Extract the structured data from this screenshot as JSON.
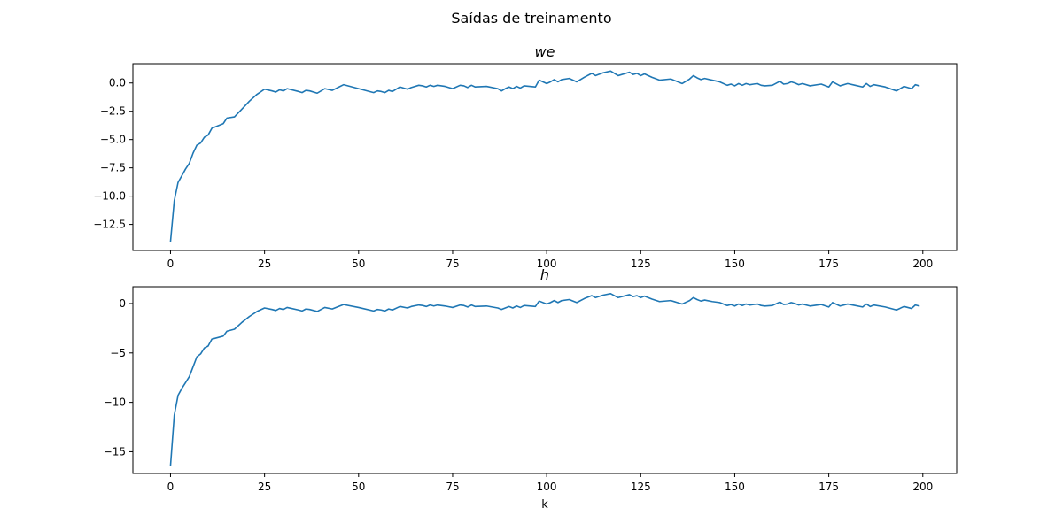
{
  "figure": {
    "suptitle": "Saídas de treinamento"
  },
  "chart_data": [
    {
      "type": "line",
      "title": "we",
      "xlabel": "",
      "ylabel": "",
      "xlim": [
        -10,
        209
      ],
      "ylim": [
        -14.8,
        1.7
      ],
      "xticks": [
        0,
        25,
        50,
        75,
        100,
        125,
        150,
        175,
        200
      ],
      "xtick_labels": [
        "0",
        "25",
        "50",
        "75",
        "100",
        "125",
        "150",
        "175",
        "200"
      ],
      "yticks": [
        0,
        -2.5,
        -5,
        -7.5,
        -10,
        -12.5
      ],
      "ytick_labels": [
        "0.0",
        "−2.5",
        "−5.0",
        "−7.5",
        "−10.0",
        "−12.5"
      ],
      "grid": false,
      "series": [
        {
          "color": "#1f77b4",
          "x": [
            0,
            1,
            2,
            3,
            4,
            5,
            6,
            7,
            8,
            9,
            10,
            11,
            14,
            15,
            17,
            19,
            21,
            23,
            25,
            27,
            28,
            29,
            30,
            31,
            34,
            35,
            36,
            37,
            39,
            41,
            43,
            46,
            50,
            54,
            55,
            56,
            57,
            58,
            59,
            61,
            63,
            64,
            66,
            67,
            68,
            69,
            70,
            71,
            73,
            75,
            77,
            78,
            79,
            80,
            81,
            84,
            87,
            88,
            89,
            90,
            91,
            92,
            93,
            94,
            97,
            98,
            100,
            101,
            102,
            103,
            104,
            106,
            108,
            110,
            112,
            113,
            115,
            117,
            119,
            122,
            123,
            124,
            125,
            126,
            128,
            130,
            133,
            136,
            138,
            139,
            140,
            141,
            142,
            144,
            146,
            148,
            149,
            150,
            151,
            152,
            153,
            154,
            155,
            156,
            157,
            158,
            160,
            162,
            163,
            164,
            165,
            166,
            167,
            168,
            170,
            173,
            175,
            176,
            178,
            180,
            182,
            184,
            185,
            186,
            187,
            190,
            193,
            195,
            197,
            198,
            199
          ],
          "y": [
            -14.0,
            -10.4,
            -8.8,
            -8.2,
            -7.6,
            -7.1,
            -6.2,
            -5.5,
            -5.3,
            -4.8,
            -4.6,
            -4.0,
            -3.6,
            -3.1,
            -3.0,
            -2.3,
            -1.6,
            -1.0,
            -0.55,
            -0.7,
            -0.8,
            -0.6,
            -0.7,
            -0.5,
            -0.75,
            -0.85,
            -0.65,
            -0.7,
            -0.9,
            -0.5,
            -0.65,
            -0.15,
            -0.5,
            -0.85,
            -0.7,
            -0.75,
            -0.85,
            -0.65,
            -0.75,
            -0.35,
            -0.55,
            -0.4,
            -0.2,
            -0.25,
            -0.35,
            -0.2,
            -0.3,
            -0.2,
            -0.3,
            -0.5,
            -0.2,
            -0.25,
            -0.4,
            -0.2,
            -0.35,
            -0.3,
            -0.5,
            -0.7,
            -0.5,
            -0.35,
            -0.5,
            -0.3,
            -0.45,
            -0.25,
            -0.35,
            0.25,
            -0.05,
            0.1,
            0.3,
            0.1,
            0.3,
            0.4,
            0.1,
            0.5,
            0.85,
            0.65,
            0.9,
            1.05,
            0.65,
            0.95,
            0.75,
            0.85,
            0.65,
            0.8,
            0.5,
            0.25,
            0.35,
            -0.05,
            0.35,
            0.65,
            0.45,
            0.3,
            0.4,
            0.25,
            0.1,
            -0.2,
            -0.1,
            -0.25,
            -0.05,
            -0.2,
            -0.05,
            -0.15,
            -0.1,
            -0.05,
            -0.2,
            -0.25,
            -0.2,
            0.15,
            -0.1,
            -0.05,
            0.1,
            0.0,
            -0.15,
            -0.05,
            -0.25,
            -0.1,
            -0.35,
            0.1,
            -0.25,
            -0.05,
            -0.2,
            -0.35,
            -0.05,
            -0.3,
            -0.15,
            -0.35,
            -0.7,
            -0.3,
            -0.5,
            -0.15,
            -0.25
          ]
        }
      ]
    },
    {
      "type": "line",
      "title": "h",
      "xlabel": "k",
      "ylabel": "",
      "xlim": [
        -10,
        209
      ],
      "ylim": [
        -17.2,
        1.7
      ],
      "xticks": [
        0,
        25,
        50,
        75,
        100,
        125,
        150,
        175,
        200
      ],
      "xtick_labels": [
        "0",
        "25",
        "50",
        "75",
        "100",
        "125",
        "150",
        "175",
        "200"
      ],
      "yticks": [
        0,
        -5,
        -10,
        -15
      ],
      "ytick_labels": [
        "0",
        "−5",
        "−10",
        "−15"
      ],
      "grid": false,
      "series": [
        {
          "color": "#1f77b4",
          "x": [
            0,
            1,
            2,
            3,
            4,
            5,
            6,
            7,
            8,
            9,
            10,
            11,
            14,
            15,
            17,
            19,
            21,
            23,
            25,
            27,
            28,
            29,
            30,
            31,
            34,
            35,
            36,
            37,
            39,
            41,
            43,
            46,
            50,
            54,
            55,
            56,
            57,
            58,
            59,
            61,
            63,
            64,
            66,
            67,
            68,
            69,
            70,
            71,
            73,
            75,
            77,
            78,
            79,
            80,
            81,
            84,
            87,
            88,
            89,
            90,
            91,
            92,
            93,
            94,
            97,
            98,
            100,
            101,
            102,
            103,
            104,
            106,
            108,
            110,
            112,
            113,
            115,
            117,
            119,
            122,
            123,
            124,
            125,
            126,
            128,
            130,
            133,
            136,
            138,
            139,
            140,
            141,
            142,
            144,
            146,
            148,
            149,
            150,
            151,
            152,
            153,
            154,
            155,
            156,
            157,
            158,
            160,
            162,
            163,
            164,
            165,
            166,
            167,
            168,
            170,
            173,
            175,
            176,
            178,
            180,
            182,
            184,
            185,
            186,
            187,
            190,
            193,
            195,
            197,
            198,
            199
          ],
          "y": [
            -16.4,
            -11.3,
            -9.3,
            -8.6,
            -8.0,
            -7.4,
            -6.4,
            -5.4,
            -5.1,
            -4.5,
            -4.3,
            -3.6,
            -3.3,
            -2.8,
            -2.6,
            -1.9,
            -1.3,
            -0.8,
            -0.45,
            -0.6,
            -0.7,
            -0.5,
            -0.6,
            -0.4,
            -0.65,
            -0.75,
            -0.55,
            -0.6,
            -0.8,
            -0.4,
            -0.55,
            -0.1,
            -0.4,
            -0.75,
            -0.6,
            -0.65,
            -0.75,
            -0.55,
            -0.65,
            -0.3,
            -0.45,
            -0.3,
            -0.15,
            -0.2,
            -0.3,
            -0.15,
            -0.25,
            -0.15,
            -0.25,
            -0.4,
            -0.15,
            -0.2,
            -0.35,
            -0.15,
            -0.3,
            -0.25,
            -0.45,
            -0.6,
            -0.45,
            -0.3,
            -0.45,
            -0.25,
            -0.4,
            -0.2,
            -0.3,
            0.25,
            -0.05,
            0.1,
            0.3,
            0.1,
            0.3,
            0.4,
            0.1,
            0.5,
            0.8,
            0.6,
            0.85,
            1.0,
            0.6,
            0.9,
            0.7,
            0.8,
            0.6,
            0.75,
            0.45,
            0.2,
            0.3,
            -0.05,
            0.3,
            0.6,
            0.4,
            0.25,
            0.35,
            0.2,
            0.1,
            -0.2,
            -0.1,
            -0.25,
            -0.05,
            -0.2,
            -0.05,
            -0.15,
            -0.1,
            -0.05,
            -0.2,
            -0.25,
            -0.2,
            0.15,
            -0.1,
            -0.05,
            0.1,
            0.0,
            -0.15,
            -0.05,
            -0.25,
            -0.1,
            -0.35,
            0.1,
            -0.25,
            -0.05,
            -0.2,
            -0.35,
            -0.05,
            -0.3,
            -0.15,
            -0.35,
            -0.65,
            -0.3,
            -0.5,
            -0.15,
            -0.25
          ]
        }
      ]
    }
  ]
}
